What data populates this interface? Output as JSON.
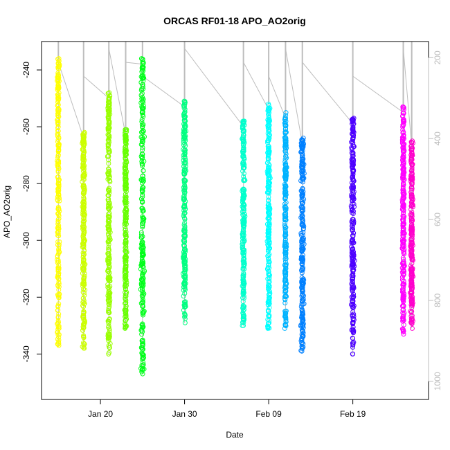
{
  "chart_data": {
    "type": "scatter",
    "title": "ORCAS RF01-18 APO_AO2orig",
    "xlabel": "Date",
    "ylabel": "APO_AO2orig",
    "xlim": [
      "2016-01-13",
      "2016-02-28"
    ],
    "ylim": [
      -356,
      -230
    ],
    "right_axis_ylim": [
      1045,
      160
    ],
    "right_axis_reversed": true,
    "x_ticks": [
      {
        "label": "Jan 20",
        "value": "2016-01-20"
      },
      {
        "label": "Jan 30",
        "value": "2016-01-30"
      },
      {
        "label": "Feb 09",
        "value": "2016-02-09"
      },
      {
        "label": "Feb 19",
        "value": "2016-02-19"
      }
    ],
    "y_ticks": [
      {
        "label": "-240",
        "value": -240
      },
      {
        "label": "-260",
        "value": -260
      },
      {
        "label": "-280",
        "value": -280
      },
      {
        "label": "-300",
        "value": -300
      },
      {
        "label": "-320",
        "value": -320
      },
      {
        "label": "-340",
        "value": -340
      }
    ],
    "right_ticks": [
      {
        "label": "200",
        "value": 200
      },
      {
        "label": "400",
        "value": 400
      },
      {
        "label": "600",
        "value": 600
      },
      {
        "label": "800",
        "value": 800
      },
      {
        "label": "1000",
        "value": 1000
      }
    ],
    "marker": "open-circle",
    "line_color": "#bdbdbd",
    "flights": [
      {
        "date": "2016-01-15",
        "color": "#ffff00",
        "ymin": -337,
        "ymax": -236,
        "width_days": 0.4
      },
      {
        "date": "2016-01-18",
        "color": "#ccff00",
        "ymin": -338,
        "ymax": -262,
        "width_days": 0.45
      },
      {
        "date": "2016-01-21",
        "color": "#99ff00",
        "ymin": -340,
        "ymax": -248,
        "width_days": 0.45
      },
      {
        "date": "2016-01-23",
        "color": "#66ff00",
        "ymin": -331,
        "ymax": -261,
        "width_days": 0.4
      },
      {
        "date": "2016-01-25",
        "color": "#00ff1a",
        "ymin": -347,
        "ymax": -236,
        "width_days": 0.55
      },
      {
        "date": "2016-01-30",
        "color": "#00ff80",
        "ymin": -329,
        "ymax": -251,
        "width_days": 0.45
      },
      {
        "date": "2016-02-06",
        "color": "#00ffcc",
        "ymin": -330,
        "ymax": -258,
        "width_days": 0.45
      },
      {
        "date": "2016-02-09",
        "color": "#00ffff",
        "ymin": -331,
        "ymax": -252,
        "width_days": 0.45
      },
      {
        "date": "2016-02-11",
        "color": "#00b3ff",
        "ymin": -331,
        "ymax": -255,
        "width_days": 0.35
      },
      {
        "date": "2016-02-13",
        "color": "#0080ff",
        "ymin": -339,
        "ymax": -264,
        "width_days": 0.55
      },
      {
        "date": "2016-02-19",
        "color": "#4d00ff",
        "ymin": -340,
        "ymax": -257,
        "width_days": 0.5
      },
      {
        "date": "2016-02-25",
        "color": "#ff00ff",
        "ymin": -333,
        "ymax": -253,
        "width_days": 0.4
      },
      {
        "date": "2016-02-26",
        "color": "#ff00cc",
        "ymin": -331,
        "ymax": -265,
        "width_days": 0.45
      }
    ]
  }
}
